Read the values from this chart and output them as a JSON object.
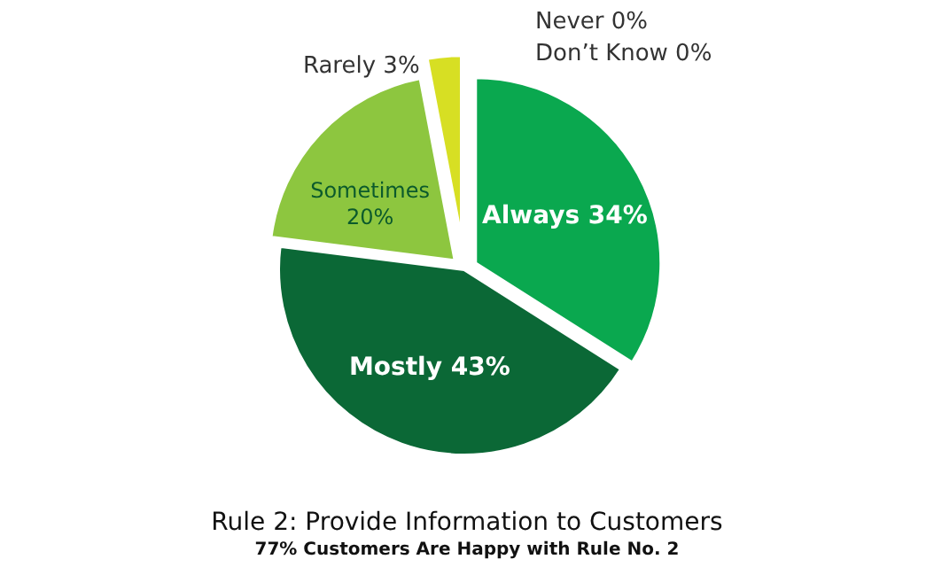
{
  "chart_data": {
    "type": "pie",
    "title": "Rule 2: Provide Information to Customers",
    "subtitle": "77% Customers Are Happy with Rule No. 2",
    "categories": [
      "Always",
      "Mostly",
      "Sometimes",
      "Rarely",
      "Never",
      "Don’t Know"
    ],
    "values": [
      34,
      43,
      20,
      3,
      0,
      0
    ],
    "value_labels": [
      "34%",
      "43%",
      "20%",
      "3%",
      "0%",
      "0%"
    ],
    "colors": [
      "#0aa84f",
      "#0b6836",
      "#8dc63f",
      "#d7df23",
      "#b5b5b5",
      "#808080"
    ]
  }
}
